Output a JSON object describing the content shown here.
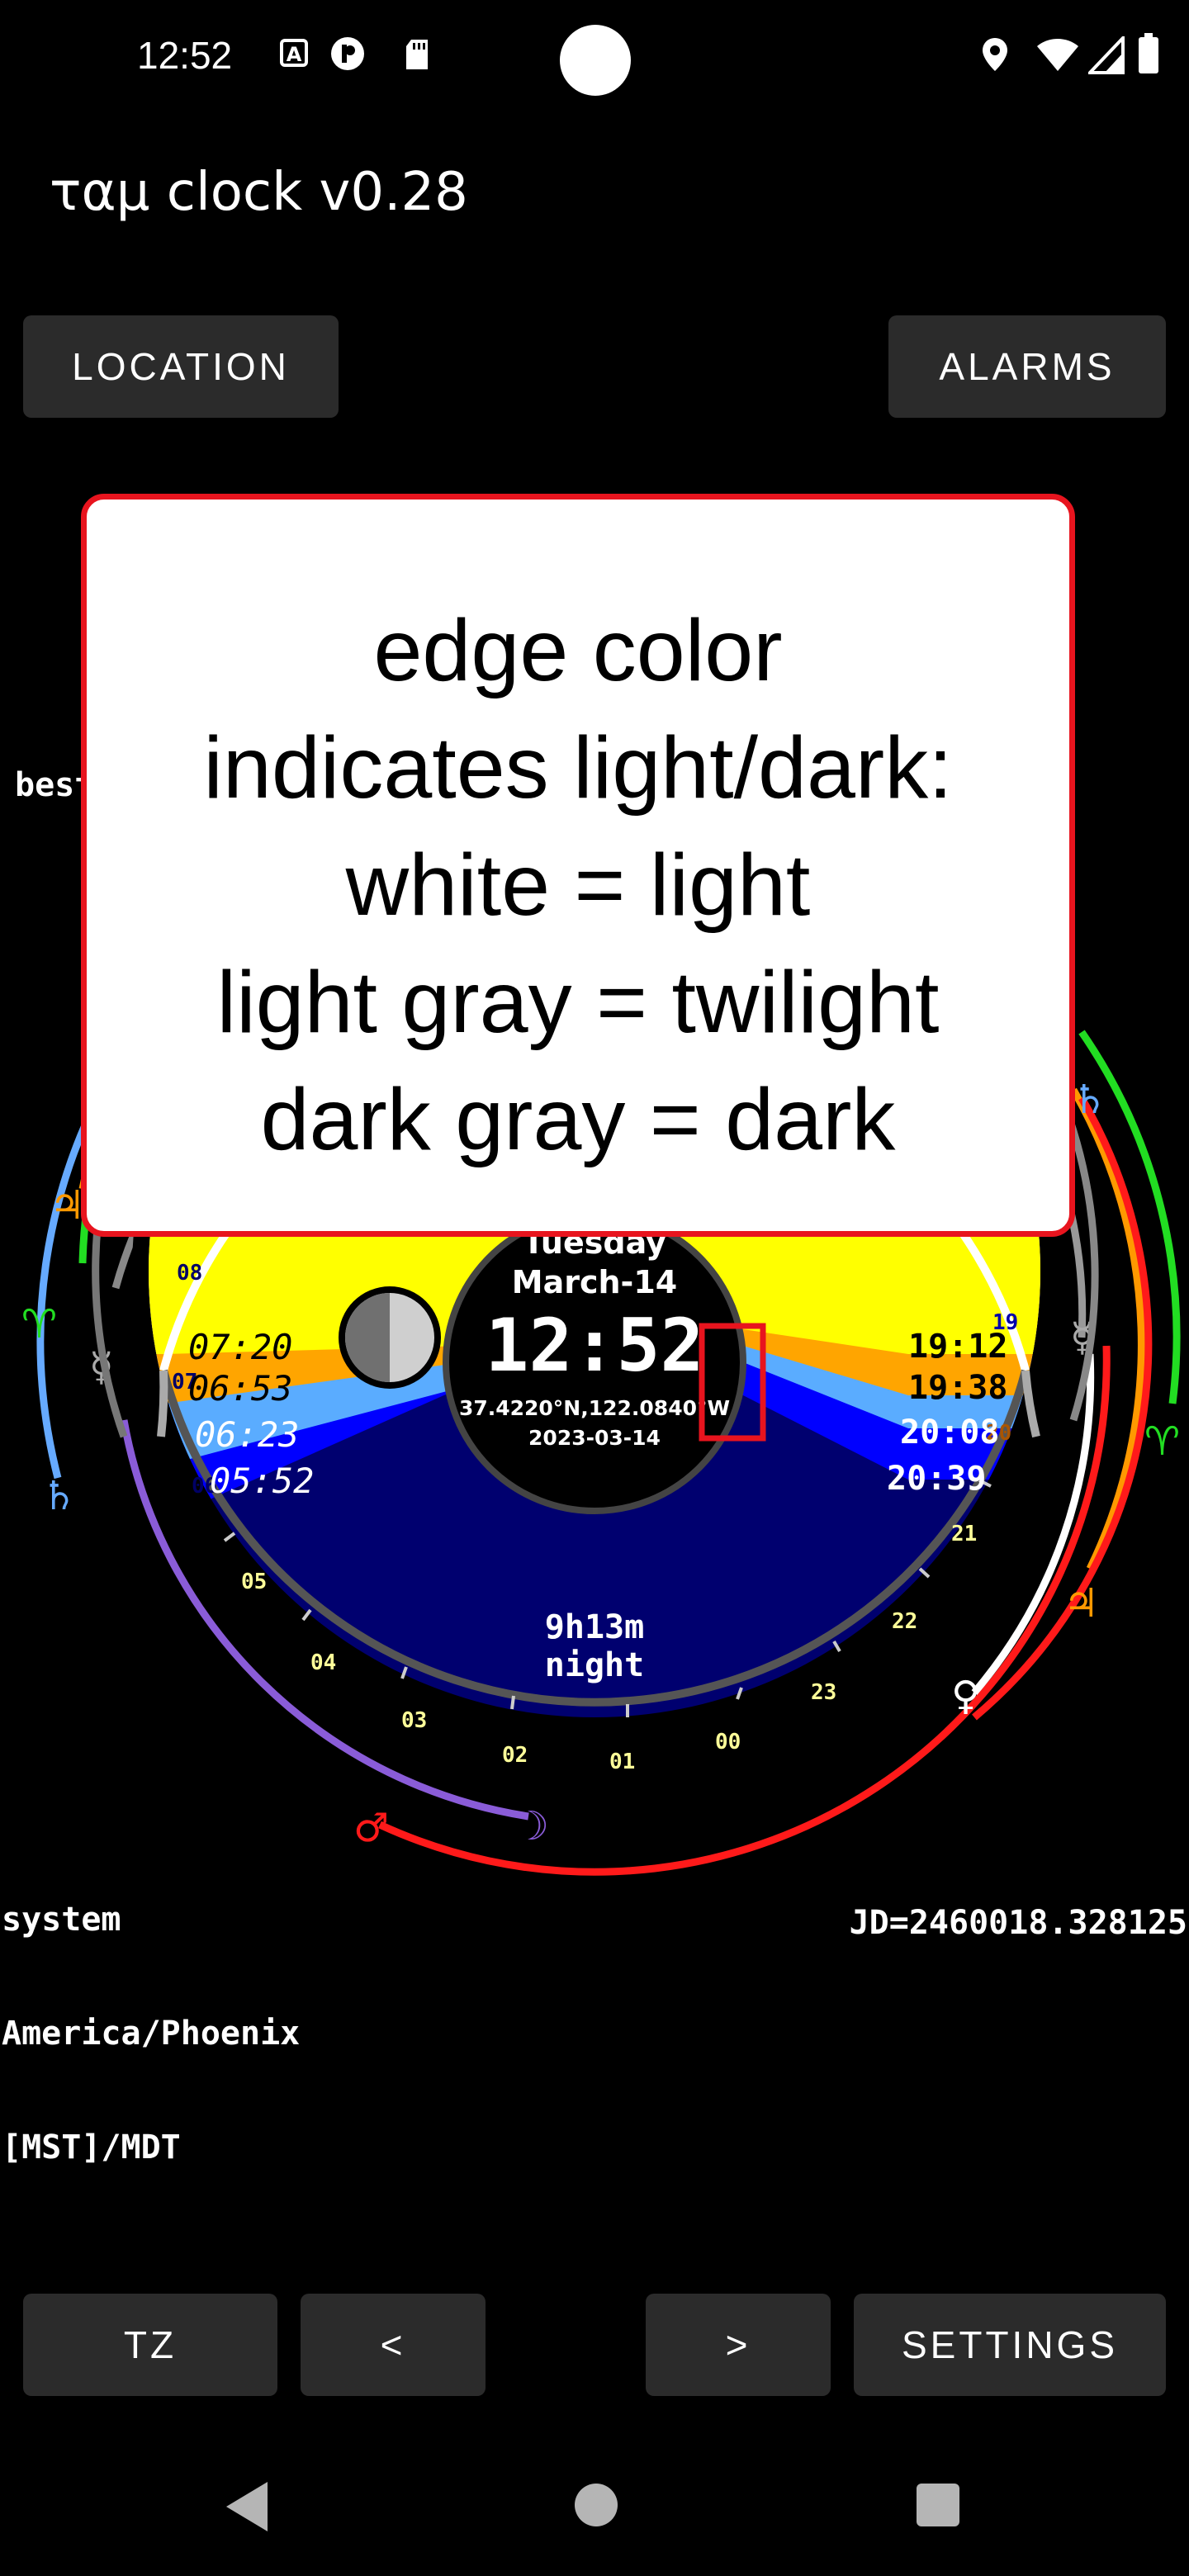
{
  "status_bar": {
    "time": "12:52",
    "left_icons": [
      "a-icon",
      "p-icon",
      "sd-card-icon"
    ],
    "right_icons": [
      "location-icon",
      "wifi-icon",
      "signal-icon",
      "battery-icon"
    ]
  },
  "app": {
    "title": "ταμ clock v0.28"
  },
  "top_buttons": {
    "location": "LOCATION",
    "alarms": "ALARMS"
  },
  "bottom_buttons": {
    "tz": "TZ",
    "prev": "<",
    "next": ">",
    "settings": "SETTINGS"
  },
  "clock": {
    "weekday": "Tuesday",
    "date_short": "March-14",
    "time": "12:52",
    "coords": "37.4220°N,122.0840°W",
    "date_iso": "2023-03-14",
    "night_duration": "9h13m",
    "night_label": "night",
    "left_times": [
      "07:20",
      "06:53",
      "06:23",
      "05:52"
    ],
    "right_times": [
      "19:12",
      "19:38",
      "20:08",
      "20:39"
    ],
    "hour_labels": [
      "00",
      "01",
      "02",
      "03",
      "04",
      "05",
      "06",
      "07",
      "08",
      "19",
      "20",
      "21",
      "22",
      "23"
    ],
    "colors": {
      "day": "#ffff00",
      "civil": "#ffa500",
      "nautical": "#5aacff",
      "astro": "#0000ff",
      "night": "#00006f"
    }
  },
  "info": {
    "best": "best",
    "tz_lines": [
      "system",
      "America/Phoenix",
      "[MST]/MDT"
    ],
    "jd": "JD=2460018.328125"
  },
  "tooltip": {
    "lines": [
      "edge color",
      "indicates light/dark:",
      "white = light",
      "light gray = twilight",
      "dark gray = dark"
    ],
    "border_color": "#e8141e"
  }
}
